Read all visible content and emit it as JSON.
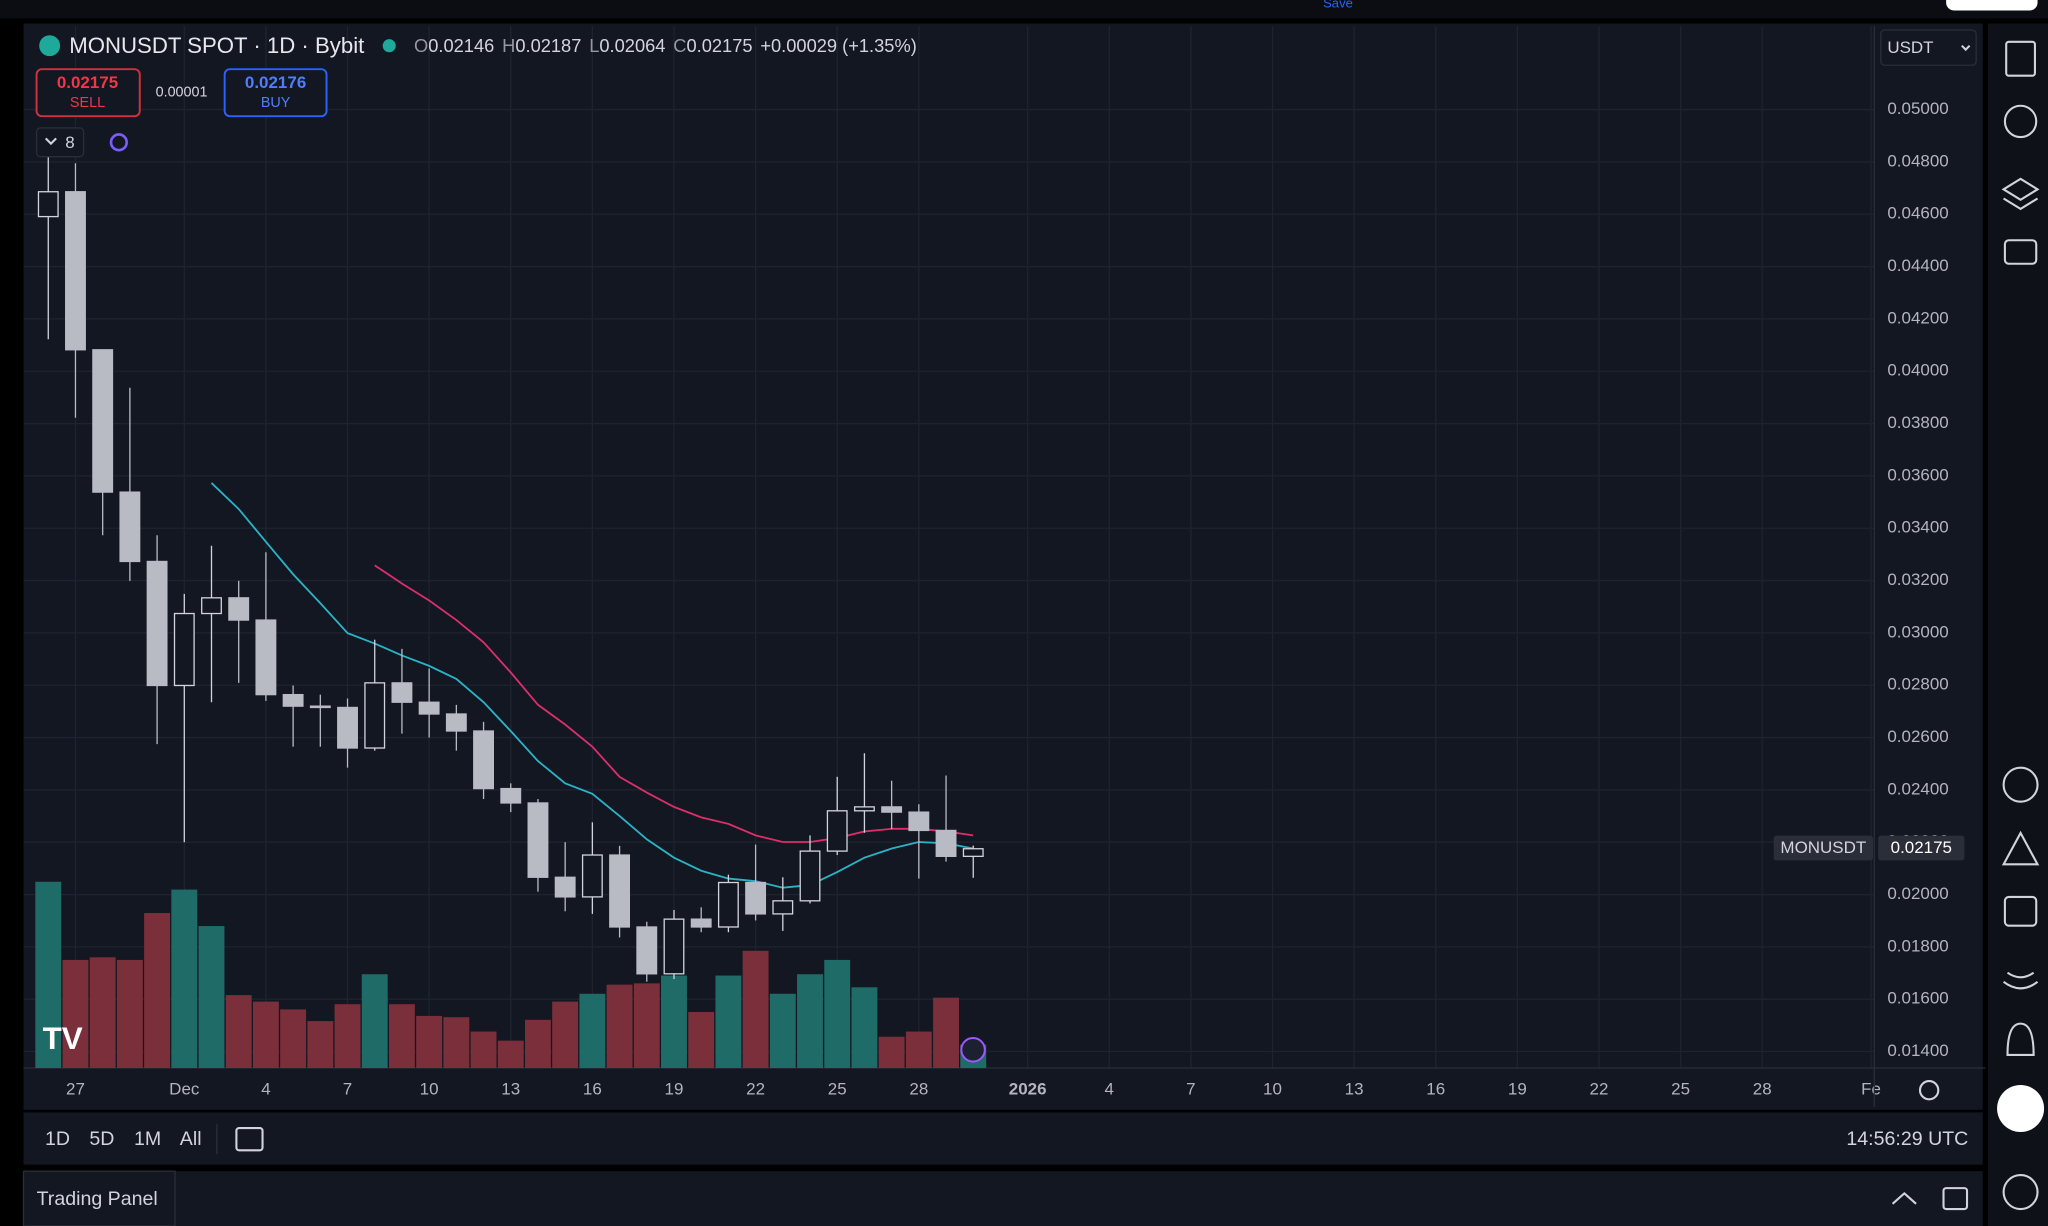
{
  "top": {
    "save": "Save"
  },
  "header": {
    "symbol": "MONUSDT SPOT · 1D · Bybit",
    "ohlc": [
      {
        "key": "O",
        "value": "0.02146"
      },
      {
        "key": "H",
        "value": "0.02187"
      },
      {
        "key": "L",
        "value": "0.02064"
      },
      {
        "key": "C",
        "value": "0.02175"
      }
    ],
    "change": "+0.00029 (+1.35%)"
  },
  "trade": {
    "sell_price": "0.02175",
    "sell": "SELL",
    "spread": "0.00001",
    "buy_price": "0.02176",
    "buy": "BUY"
  },
  "indicators_count": "8",
  "currency": "USDT",
  "price_tag": {
    "symbol": "MONUSDT",
    "price": "0.02175"
  },
  "chart_data": {
    "type": "candlestick",
    "x": [
      0,
      1,
      2,
      3,
      4,
      5,
      6,
      7,
      8,
      9,
      10,
      11,
      12,
      13,
      14,
      15,
      16,
      17,
      18,
      19,
      20,
      21,
      22,
      23,
      24,
      25,
      26,
      27,
      28,
      29,
      30,
      31,
      32,
      33,
      34
    ],
    "open": [
      0.04591,
      0.04686,
      0.04082,
      0.03538,
      0.03273,
      0.02799,
      0.03074,
      0.03134,
      0.03049,
      0.02764,
      0.0272,
      0.02715,
      0.0256,
      0.02809,
      0.02735,
      0.0269,
      0.02625,
      0.02405,
      0.0235,
      0.02066,
      0.01991,
      0.02151,
      0.01876,
      0.01697,
      0.01906,
      0.01876,
      0.02046,
      0.01926,
      0.01976,
      0.02166,
      0.0232,
      0.02335,
      0.02315,
      0.02245,
      0.02146
    ],
    "high": [
      0.0482,
      0.04795,
      0.04082,
      0.03937,
      0.03373,
      0.03149,
      0.03333,
      0.03199,
      0.03308,
      0.02799,
      0.02764,
      0.02749,
      0.02974,
      0.02939,
      0.02864,
      0.02725,
      0.0266,
      0.02425,
      0.02365,
      0.022,
      0.02276,
      0.02186,
      0.01896,
      0.01941,
      0.01951,
      0.02076,
      0.02191,
      0.02066,
      0.02226,
      0.0245,
      0.0254,
      0.02435,
      0.02345,
      0.02455,
      0.02187
    ],
    "low": [
      0.04122,
      0.03822,
      0.03373,
      0.03199,
      0.02575,
      0.022,
      0.02735,
      0.02809,
      0.0274,
      0.02565,
      0.02565,
      0.02485,
      0.0255,
      0.02615,
      0.026,
      0.0255,
      0.02365,
      0.02315,
      0.02011,
      0.01936,
      0.01926,
      0.01836,
      0.01667,
      0.01677,
      0.01856,
      0.01856,
      0.01901,
      0.01861,
      0.01966,
      0.02151,
      0.02236,
      0.0225,
      0.02061,
      0.02126,
      0.02064
    ],
    "close": [
      0.04686,
      0.04082,
      0.03538,
      0.03273,
      0.02799,
      0.03074,
      0.03134,
      0.03049,
      0.02764,
      0.0272,
      0.02715,
      0.0256,
      0.02809,
      0.02735,
      0.0269,
      0.02625,
      0.02405,
      0.0235,
      0.02066,
      0.01991,
      0.02151,
      0.01876,
      0.01697,
      0.01906,
      0.01876,
      0.02046,
      0.01926,
      0.01976,
      0.02166,
      0.0232,
      0.02335,
      0.02315,
      0.02245,
      0.02146,
      0.02175
    ],
    "volume": [
      143,
      83,
      85,
      83,
      119,
      137,
      109,
      56,
      51,
      45,
      36,
      49,
      72,
      49,
      40,
      39,
      28,
      21,
      37,
      51,
      57,
      64,
      65,
      71,
      43,
      71,
      90,
      57,
      72,
      83,
      62,
      24,
      28,
      54,
      18
    ],
    "volume_ylim": [
      0,
      800
    ],
    "up_color": "#d1d4dc",
    "down_color": "#b8bac4",
    "volume_up_color": "#1f6b68",
    "volume_down_color": "#7b2f3b",
    "series": [
      {
        "color": "#2ab3c6",
        "values": [
          null,
          null,
          null,
          null,
          null,
          null,
          0.03573,
          0.03473,
          0.03348,
          0.03224,
          0.03114,
          0.02999,
          0.02959,
          0.02914,
          0.02874,
          0.02824,
          0.02735,
          0.02625,
          0.0251,
          0.02425,
          0.02385,
          0.023,
          0.02211,
          0.02141,
          0.02091,
          0.02061,
          0.02051,
          0.02026,
          0.02036,
          0.02086,
          0.02141,
          0.02176,
          0.02201,
          0.02196,
          0.02176
        ]
      },
      {
        "color": "#d92f6b",
        "values": [
          null,
          null,
          null,
          null,
          null,
          null,
          null,
          null,
          null,
          null,
          null,
          null,
          0.03258,
          0.03189,
          0.03124,
          0.03049,
          0.02964,
          0.02849,
          0.02725,
          0.0265,
          0.02565,
          0.0245,
          0.0239,
          0.02335,
          0.02295,
          0.0227,
          0.02226,
          0.02201,
          0.02201,
          0.02216,
          0.02241,
          0.02251,
          0.02251,
          0.02241,
          0.02226
        ]
      }
    ],
    "xlim": [
      -0.91,
      67.12
    ],
    "xticks": [
      {
        "value": 1,
        "label": "27"
      },
      {
        "value": 5,
        "label": "Dec"
      },
      {
        "value": 8,
        "label": "4"
      },
      {
        "value": 11,
        "label": "7"
      },
      {
        "value": 14,
        "label": "10"
      },
      {
        "value": 17,
        "label": "13"
      },
      {
        "value": 20,
        "label": "16"
      },
      {
        "value": 23,
        "label": "19"
      },
      {
        "value": 26,
        "label": "22"
      },
      {
        "value": 29,
        "label": "25"
      },
      {
        "value": 32,
        "label": "28"
      },
      {
        "value": 36,
        "label": "2026"
      },
      {
        "value": 39,
        "label": "4"
      },
      {
        "value": 42,
        "label": "7"
      },
      {
        "value": 45,
        "label": "10"
      },
      {
        "value": 48,
        "label": "13"
      },
      {
        "value": 51,
        "label": "16"
      },
      {
        "value": 54,
        "label": "19"
      },
      {
        "value": 57,
        "label": "22"
      },
      {
        "value": 60,
        "label": "25"
      },
      {
        "value": 63,
        "label": "28"
      },
      {
        "value": 67,
        "label": "Fe"
      }
    ],
    "ylim": [
      0.01337,
      0.05319
    ],
    "yticks": [
      {
        "value": 0.05,
        "label": "0.05000"
      },
      {
        "value": 0.048,
        "label": "0.04800"
      },
      {
        "value": 0.046,
        "label": "0.04600"
      },
      {
        "value": 0.044,
        "label": "0.04400"
      },
      {
        "value": 0.042,
        "label": "0.04200"
      },
      {
        "value": 0.04,
        "label": "0.04000"
      },
      {
        "value": 0.038,
        "label": "0.03800"
      },
      {
        "value": 0.036,
        "label": "0.03600"
      },
      {
        "value": 0.034,
        "label": "0.03400"
      },
      {
        "value": 0.032,
        "label": "0.03200"
      },
      {
        "value": 0.03,
        "label": "0.03000"
      },
      {
        "value": 0.028,
        "label": "0.02800"
      },
      {
        "value": 0.026,
        "label": "0.02600"
      },
      {
        "value": 0.024,
        "label": "0.02400"
      },
      {
        "value": 0.022,
        "label": "0.02200"
      },
      {
        "value": 0.02,
        "label": "0.02000"
      },
      {
        "value": 0.018,
        "label": "0.01800"
      },
      {
        "value": 0.016,
        "label": "0.01600"
      },
      {
        "value": 0.014,
        "label": "0.01400"
      }
    ],
    "grid": true
  },
  "range_buttons": [
    "1D",
    "5D",
    "1M",
    "All"
  ],
  "time": "14:56:29 UTC",
  "footer": {
    "panel": "Trading Panel"
  }
}
